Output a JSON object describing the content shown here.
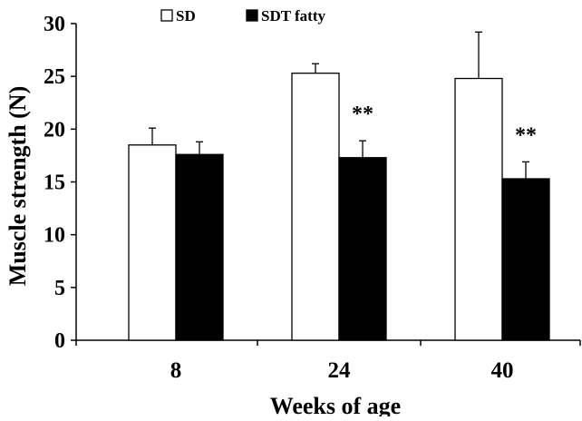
{
  "chart_data": {
    "type": "bar",
    "categories": [
      "8",
      "24",
      "40"
    ],
    "series": [
      {
        "name": "SD",
        "values": [
          18.5,
          25.3,
          24.8
        ],
        "error": [
          1.6,
          0.9,
          4.4
        ],
        "fill": "#ffffff",
        "stroke": "#000000"
      },
      {
        "name": "SDT fatty",
        "values": [
          17.6,
          17.3,
          15.3
        ],
        "error": [
          1.2,
          1.6,
          1.6
        ],
        "fill": "#000000",
        "stroke": "#000000"
      }
    ],
    "annotations": [
      "",
      "**",
      "**"
    ],
    "xlabel": "Weeks of age",
    "ylabel": "Muscle strength (N)",
    "ylim": [
      0,
      30
    ],
    "yticks": [
      "0",
      "5",
      "10",
      "15",
      "20",
      "25",
      "30"
    ],
    "grid": false,
    "legend_position": "top"
  }
}
